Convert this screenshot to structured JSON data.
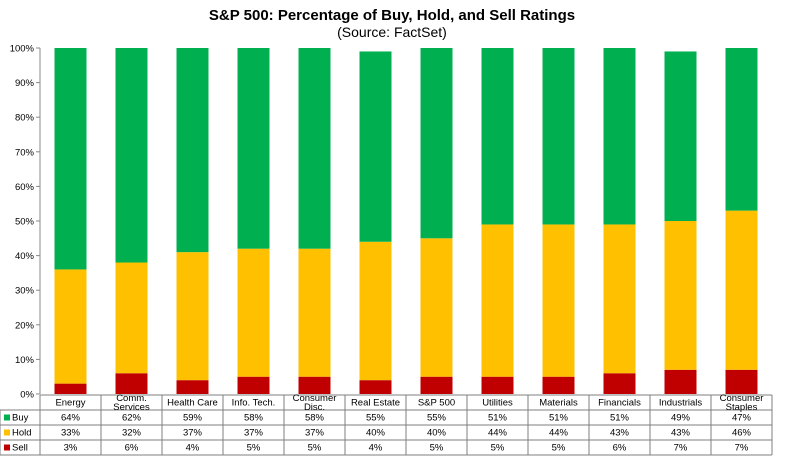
{
  "chart_data": {
    "type": "bar",
    "stacked": true,
    "title": "S&P 500: Percentage of Buy, Hold, and Sell Ratings",
    "subtitle": "(Source: FactSet)",
    "ylim": [
      0,
      100
    ],
    "yticks": [
      "0%",
      "10%",
      "20%",
      "30%",
      "40%",
      "50%",
      "60%",
      "70%",
      "80%",
      "90%",
      "100%"
    ],
    "grid": false,
    "legend": "data-table-left",
    "categories": [
      [
        "Energy"
      ],
      [
        "Comm.",
        "Services"
      ],
      [
        "Health Care"
      ],
      [
        "Info. Tech."
      ],
      [
        "Consumer",
        "Disc."
      ],
      [
        "Real Estate"
      ],
      [
        "S&P 500"
      ],
      [
        "Utilities"
      ],
      [
        "Materials"
      ],
      [
        "Financials"
      ],
      [
        "Industrials"
      ],
      [
        "Consumer",
        "Staples"
      ]
    ],
    "series": [
      {
        "name": "Sell",
        "color": "#c00000",
        "values": [
          3,
          6,
          4,
          5,
          5,
          4,
          5,
          5,
          5,
          6,
          7,
          7
        ],
        "labels": [
          "3%",
          "6%",
          "4%",
          "5%",
          "5%",
          "4%",
          "5%",
          "5%",
          "5%",
          "6%",
          "7%",
          "7%"
        ]
      },
      {
        "name": "Hold",
        "color": "#ffc000",
        "values": [
          33,
          32,
          37,
          37,
          37,
          40,
          40,
          44,
          44,
          43,
          43,
          46
        ],
        "labels": [
          "33%",
          "32%",
          "37%",
          "37%",
          "37%",
          "40%",
          "40%",
          "44%",
          "44%",
          "43%",
          "43%",
          "46%"
        ]
      },
      {
        "name": "Buy",
        "color": "#00b050",
        "values": [
          64,
          62,
          59,
          58,
          58,
          55,
          55,
          51,
          51,
          51,
          49,
          47
        ],
        "labels": [
          "64%",
          "62%",
          "59%",
          "58%",
          "58%",
          "55%",
          "55%",
          "51%",
          "51%",
          "51%",
          "49%",
          "47%"
        ]
      }
    ],
    "table_row_order": [
      "Buy",
      "Hold",
      "Sell"
    ]
  }
}
